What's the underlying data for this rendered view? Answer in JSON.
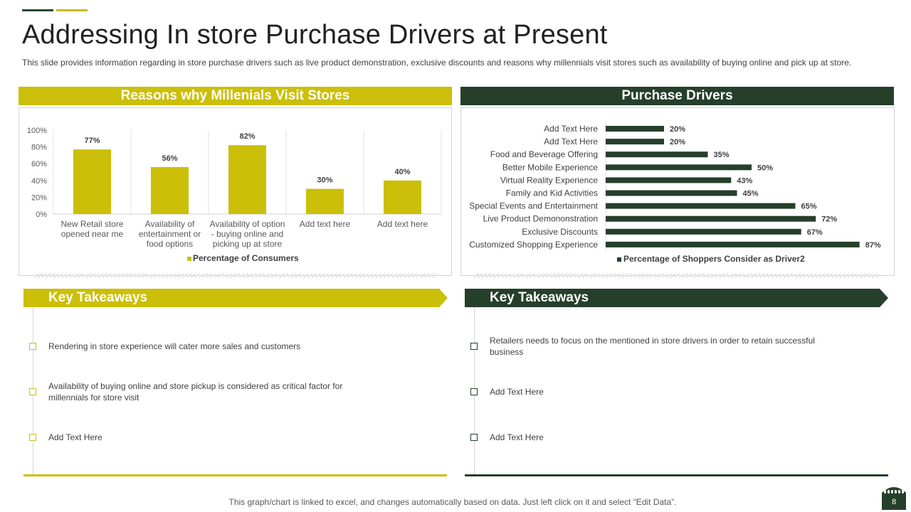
{
  "page": {
    "title": "Addressing In store Purchase Drivers at Present",
    "subtitle": "This slide provides information regarding in store purchase drivers such as live product demonstration, exclusive discounts and reasons why millennials visit stores such as availability of buying online and pick up at store.",
    "footer_note": "This graph/chart is linked to excel, and changes automatically based on data. Just left click on it and select “Edit Data”.",
    "page_number": "8",
    "colors": {
      "yellow": "#cbbf09",
      "dark_green": "#263f2b",
      "text": "#404040"
    }
  },
  "left_panel": {
    "header": "Reasons why Millenials Visit Stores"
  },
  "right_panel": {
    "header": "Purchase Drivers"
  },
  "chart_data": [
    {
      "type": "bar",
      "categories": [
        [
          "New Retail store",
          "opened near me"
        ],
        [
          "Availability of",
          "entertainment or",
          "food  options"
        ],
        [
          "Availability of option",
          "- buying online and",
          "picking up at store"
        ],
        [
          "Add text here"
        ],
        [
          "Add text here"
        ]
      ],
      "series": [
        {
          "name": "Percentage of Consumers",
          "values": [
            77,
            56,
            82,
            30,
            40
          ],
          "color": "#cbbf09"
        }
      ],
      "data_labels": [
        "77%",
        "56%",
        "82%",
        "30%",
        "40%"
      ],
      "ylim": [
        0,
        100
      ],
      "yticks": [
        "0%",
        "20%",
        "40%",
        "60%",
        "80%",
        "100%"
      ],
      "grid": "vertical separators",
      "legend": "bottom"
    },
    {
      "type": "bar",
      "orientation": "horizontal",
      "categories": [
        "Add Text Here",
        "Add Text Here",
        "Food and Beverage Offering",
        "Better Mobile Experience",
        "Virtual Reality Experience",
        "Family and Kid Activities",
        "Special Events and Entertainment",
        "Live Product Demononstration",
        "Exclusive Discounts",
        "Customized Shopping Experience"
      ],
      "series": [
        {
          "name": "Percentage of Shoppers Consider as Driver2",
          "values": [
            20,
            20,
            35,
            50,
            43,
            45,
            65,
            72,
            67,
            87
          ],
          "color": "#263f2b"
        }
      ],
      "data_labels": [
        "20%",
        "20%",
        "35%",
        "50%",
        "43%",
        "45%",
        "65%",
        "72%",
        "67%",
        "87%"
      ],
      "xlim": [
        0,
        100
      ],
      "legend": "bottom"
    }
  ],
  "takeaways_left": {
    "title": "Key Takeaways",
    "items": [
      "Rendering in store experience will cater more sales and customers",
      "Availability of buying online and store pickup is considered as critical factor for millennials for store visit",
      "Add Text Here"
    ]
  },
  "takeaways_right": {
    "title": "Key Takeaways",
    "items": [
      "Retailers needs to focus on the mentioned in store drivers in order to retain successful business",
      "Add Text Here",
      "Add Text Here"
    ]
  }
}
